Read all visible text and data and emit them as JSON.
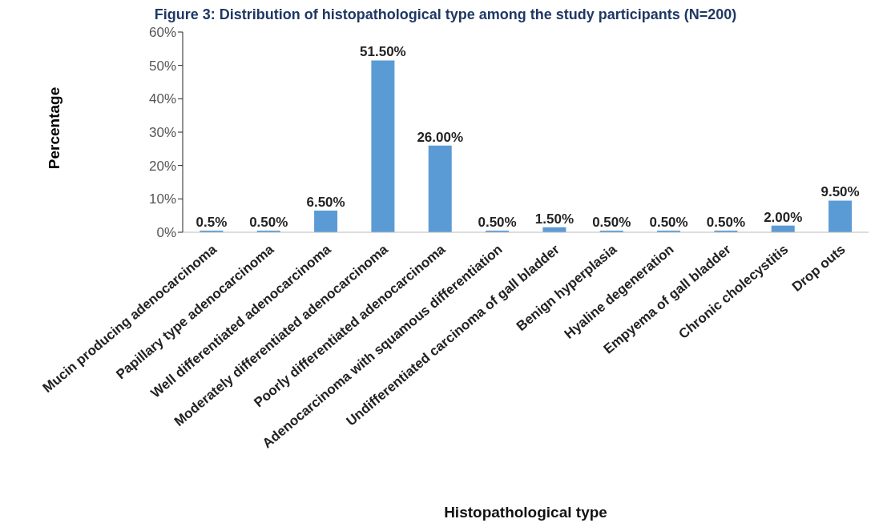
{
  "chart_data": {
    "type": "bar",
    "title": "Figure 3: Distribution of histopathological type among the study participants (N=200)",
    "xlabel": "Histopathological type",
    "ylabel": "Percentage",
    "categories": [
      "Mucin producing adenocarcinoma",
      "Papillary type adenocarcinoma",
      "Well differentiated adenocarcinoma",
      "Moderately differentiated adenocarcinoma",
      "Poorly differentiated adenocarcinoma",
      "Adenocarcinoma with squamous differentiation",
      "Undifferentiated carcinoma of gall bladder",
      "Benign hyperplasia",
      "Hyaline degeneration",
      "Empyema of gall bladder",
      "Chronic cholecystitis",
      "Drop outs"
    ],
    "values": [
      0.5,
      0.5,
      6.5,
      51.5,
      26,
      0.5,
      1.5,
      0.5,
      0.5,
      0.5,
      2,
      9.5
    ],
    "value_labels": [
      "0.5%",
      "0.50%",
      "6.50%",
      "51.50%",
      "26.00%",
      "0.50%",
      "1.50%",
      "0.50%",
      "0.50%",
      "0.50%",
      "2.00%",
      "9.50%"
    ],
    "color": "#5b9bd5",
    "ylim": [
      0,
      60
    ],
    "yticks": [
      {
        "value": 0,
        "label": "0%"
      },
      {
        "value": 10,
        "label": "10%"
      },
      {
        "value": 20,
        "label": "20%"
      },
      {
        "value": 30,
        "label": "30%"
      },
      {
        "value": 40,
        "label": "40%"
      },
      {
        "value": 50,
        "label": "50%"
      },
      {
        "value": 60,
        "label": "60%"
      }
    ],
    "grid": false,
    "legend": false
  }
}
